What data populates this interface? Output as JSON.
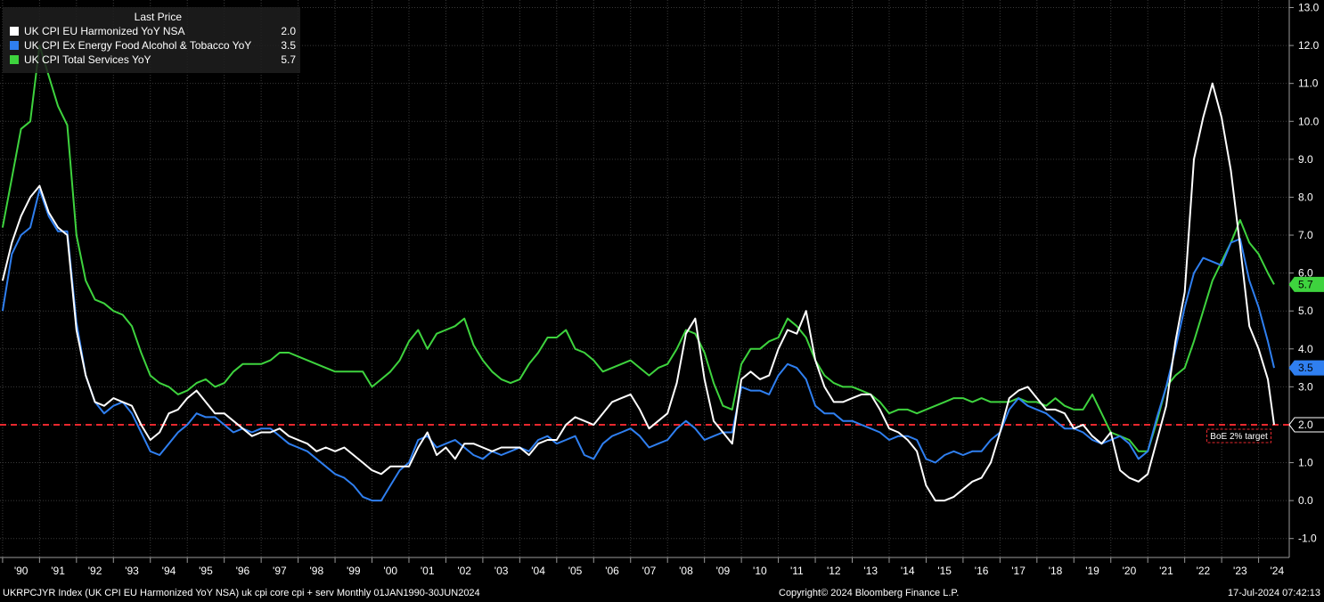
{
  "legend": {
    "header": "Last Price",
    "items": [
      {
        "label": "UK CPI EU Harmonized YoY NSA",
        "value": "2.0",
        "color": "#ffffff"
      },
      {
        "label": "UK CPI Ex Energy Food Alcohol & Tobacco YoY",
        "value": "3.5",
        "color": "#2f7ff0"
      },
      {
        "label": "UK CPI Total Services YoY",
        "value": "5.7",
        "color": "#3ed33e"
      }
    ]
  },
  "footer": {
    "left": "UKRPCJYR Index (UK CPI EU Harmonized YoY NSA) uk cpi core cpi + serv  Monthly 01JAN1990-30JUN2024",
    "center": "Copyright© 2024 Bloomberg Finance L.P.",
    "right": "17-Jul-2024 07:42:13"
  },
  "chart_data": {
    "type": "line",
    "x_range": [
      "1990-01",
      "2024-06"
    ],
    "x_ticks": [
      "'90",
      "'91",
      "'92",
      "'93",
      "'94",
      "'95",
      "'96",
      "'97",
      "'98",
      "'99",
      "'00",
      "'01",
      "'02",
      "'03",
      "'04",
      "'05",
      "'06",
      "'07",
      "'08",
      "'09",
      "'10",
      "'11",
      "'12",
      "'13",
      "'14",
      "'15",
      "'16",
      "'17",
      "'18",
      "'19",
      "'20",
      "'21",
      "'22",
      "'23",
      "'24"
    ],
    "y_ticks": [
      "-1.0",
      "0.0",
      "1.0",
      "2.0",
      "3.0",
      "4.0",
      "5.0",
      "6.0",
      "7.0",
      "8.0",
      "9.0",
      "10.0",
      "11.0",
      "12.0",
      "13.0"
    ],
    "ylim": [
      -1.5,
      13.2
    ],
    "axis_position": "right",
    "grid": true,
    "legend_position": "top-left",
    "reference_line": {
      "value": 2.0,
      "label": "BoE 2% target",
      "color": "#e8282e"
    },
    "last_values": [
      {
        "value": "5.7",
        "color": "#3ed33e"
      },
      {
        "value": "3.5",
        "color": "#2f7ff0"
      },
      {
        "value": "2.0",
        "color": "#ffffff"
      }
    ],
    "series": [
      {
        "name": "UK CPI EU Harmonized YoY NSA",
        "color": "#ffffff",
        "x": [
          1990.0,
          1990.25,
          1990.5,
          1990.75,
          1991.0,
          1991.25,
          1991.5,
          1991.75,
          1992.0,
          1992.25,
          1992.5,
          1992.75,
          1993.0,
          1993.25,
          1993.5,
          1993.75,
          1994.0,
          1994.25,
          1994.5,
          1994.75,
          1995.0,
          1995.25,
          1995.5,
          1995.75,
          1996.0,
          1996.25,
          1996.5,
          1996.75,
          1997.0,
          1997.25,
          1997.5,
          1997.75,
          1998.0,
          1998.25,
          1998.5,
          1998.75,
          1999.0,
          1999.25,
          1999.5,
          1999.75,
          2000.0,
          2000.25,
          2000.5,
          2000.75,
          2001.0,
          2001.25,
          2001.5,
          2001.75,
          2002.0,
          2002.25,
          2002.5,
          2002.75,
          2003.0,
          2003.25,
          2003.5,
          2003.75,
          2004.0,
          2004.25,
          2004.5,
          2004.75,
          2005.0,
          2005.25,
          2005.5,
          2005.75,
          2006.0,
          2006.25,
          2006.5,
          2006.75,
          2007.0,
          2007.25,
          2007.5,
          2007.75,
          2008.0,
          2008.25,
          2008.5,
          2008.75,
          2009.0,
          2009.25,
          2009.5,
          2009.75,
          2010.0,
          2010.25,
          2010.5,
          2010.75,
          2011.0,
          2011.25,
          2011.5,
          2011.75,
          2012.0,
          2012.25,
          2012.5,
          2012.75,
          2013.0,
          2013.25,
          2013.5,
          2013.75,
          2014.0,
          2014.25,
          2014.5,
          2014.75,
          2015.0,
          2015.25,
          2015.5,
          2015.75,
          2016.0,
          2016.25,
          2016.5,
          2016.75,
          2017.0,
          2017.25,
          2017.5,
          2017.75,
          2018.0,
          2018.25,
          2018.5,
          2018.75,
          2019.0,
          2019.25,
          2019.5,
          2019.75,
          2020.0,
          2020.25,
          2020.5,
          2020.75,
          2021.0,
          2021.25,
          2021.5,
          2021.75,
          2022.0,
          2022.25,
          2022.5,
          2022.75,
          2023.0,
          2023.25,
          2023.5,
          2023.75,
          2024.0,
          2024.25,
          2024.42
        ],
        "values": [
          5.8,
          6.8,
          7.5,
          8.0,
          8.3,
          7.6,
          7.2,
          7.0,
          4.5,
          3.3,
          2.6,
          2.5,
          2.7,
          2.6,
          2.5,
          2.0,
          1.6,
          1.8,
          2.3,
          2.4,
          2.7,
          2.9,
          2.6,
          2.3,
          2.3,
          2.1,
          1.9,
          1.7,
          1.8,
          1.8,
          1.9,
          1.7,
          1.6,
          1.5,
          1.3,
          1.4,
          1.3,
          1.4,
          1.2,
          1.0,
          0.8,
          0.7,
          0.9,
          0.9,
          0.9,
          1.4,
          1.8,
          1.2,
          1.4,
          1.1,
          1.5,
          1.5,
          1.4,
          1.3,
          1.4,
          1.4,
          1.4,
          1.2,
          1.5,
          1.6,
          1.6,
          2.0,
          2.2,
          2.1,
          2.0,
          2.3,
          2.6,
          2.7,
          2.8,
          2.4,
          1.9,
          2.1,
          2.3,
          3.1,
          4.4,
          4.8,
          3.2,
          2.1,
          1.8,
          1.5,
          3.2,
          3.4,
          3.2,
          3.3,
          4.0,
          4.5,
          4.4,
          5.0,
          3.7,
          3.0,
          2.6,
          2.6,
          2.7,
          2.8,
          2.8,
          2.4,
          1.9,
          1.8,
          1.6,
          1.3,
          0.4,
          0.0,
          0.0,
          0.1,
          0.3,
          0.5,
          0.6,
          1.0,
          1.8,
          2.7,
          2.9,
          3.0,
          2.7,
          2.4,
          2.4,
          2.3,
          1.9,
          2.0,
          1.7,
          1.5,
          1.8,
          0.8,
          0.6,
          0.5,
          0.7,
          1.6,
          2.5,
          4.2,
          5.5,
          9.0,
          10.1,
          11.0,
          10.1,
          8.7,
          6.7,
          4.6,
          4.0,
          3.2,
          2.0
        ]
      },
      {
        "name": "UK CPI Ex Energy Food Alcohol & Tobacco YoY",
        "color": "#2f7ff0",
        "x": [
          1990.0,
          1990.25,
          1990.5,
          1990.75,
          1991.0,
          1991.25,
          1991.5,
          1991.75,
          1992.0,
          1992.25,
          1992.5,
          1992.75,
          1993.0,
          1993.25,
          1993.5,
          1993.75,
          1994.0,
          1994.25,
          1994.5,
          1994.75,
          1995.0,
          1995.25,
          1995.5,
          1995.75,
          1996.0,
          1996.25,
          1996.5,
          1996.75,
          1997.0,
          1997.25,
          1997.5,
          1997.75,
          1998.0,
          1998.25,
          1998.5,
          1998.75,
          1999.0,
          1999.25,
          1999.5,
          1999.75,
          2000.0,
          2000.25,
          2000.5,
          2000.75,
          2001.0,
          2001.25,
          2001.5,
          2001.75,
          2002.0,
          2002.25,
          2002.5,
          2002.75,
          2003.0,
          2003.25,
          2003.5,
          2003.75,
          2004.0,
          2004.25,
          2004.5,
          2004.75,
          2005.0,
          2005.25,
          2005.5,
          2005.75,
          2006.0,
          2006.25,
          2006.5,
          2006.75,
          2007.0,
          2007.25,
          2007.5,
          2007.75,
          2008.0,
          2008.25,
          2008.5,
          2008.75,
          2009.0,
          2009.25,
          2009.5,
          2009.75,
          2010.0,
          2010.25,
          2010.5,
          2010.75,
          2011.0,
          2011.25,
          2011.5,
          2011.75,
          2012.0,
          2012.25,
          2012.5,
          2012.75,
          2013.0,
          2013.25,
          2013.5,
          2013.75,
          2014.0,
          2014.25,
          2014.5,
          2014.75,
          2015.0,
          2015.25,
          2015.5,
          2015.75,
          2016.0,
          2016.25,
          2016.5,
          2016.75,
          2017.0,
          2017.25,
          2017.5,
          2017.75,
          2018.0,
          2018.25,
          2018.5,
          2018.75,
          2019.0,
          2019.25,
          2019.5,
          2019.75,
          2020.0,
          2020.25,
          2020.5,
          2020.75,
          2021.0,
          2021.25,
          2021.5,
          2021.75,
          2022.0,
          2022.25,
          2022.5,
          2022.75,
          2023.0,
          2023.25,
          2023.5,
          2023.75,
          2024.0,
          2024.25,
          2024.42
        ],
        "values": [
          5.0,
          6.5,
          7.0,
          7.2,
          8.2,
          7.5,
          7.1,
          7.1,
          4.7,
          3.3,
          2.6,
          2.3,
          2.5,
          2.6,
          2.3,
          1.8,
          1.3,
          1.2,
          1.5,
          1.8,
          2.0,
          2.3,
          2.2,
          2.2,
          2.0,
          1.8,
          1.9,
          1.8,
          1.9,
          1.9,
          1.7,
          1.5,
          1.4,
          1.3,
          1.1,
          0.9,
          0.7,
          0.6,
          0.4,
          0.1,
          0.0,
          0.0,
          0.4,
          0.8,
          1.0,
          1.6,
          1.7,
          1.4,
          1.5,
          1.6,
          1.4,
          1.2,
          1.1,
          1.3,
          1.2,
          1.3,
          1.4,
          1.3,
          1.6,
          1.7,
          1.5,
          1.6,
          1.7,
          1.2,
          1.1,
          1.5,
          1.7,
          1.8,
          1.9,
          1.7,
          1.4,
          1.5,
          1.6,
          1.9,
          2.1,
          1.9,
          1.6,
          1.7,
          1.8,
          1.8,
          3.0,
          2.9,
          2.9,
          2.8,
          3.3,
          3.6,
          3.5,
          3.2,
          2.5,
          2.3,
          2.3,
          2.1,
          2.1,
          2.0,
          1.9,
          1.8,
          1.6,
          1.7,
          1.7,
          1.6,
          1.1,
          1.0,
          1.2,
          1.3,
          1.2,
          1.3,
          1.3,
          1.6,
          1.8,
          2.4,
          2.7,
          2.5,
          2.4,
          2.3,
          2.1,
          1.9,
          1.9,
          1.8,
          1.6,
          1.5,
          1.6,
          1.7,
          1.5,
          1.1,
          1.3,
          2.2,
          3.0,
          4.0,
          5.1,
          6.0,
          6.4,
          6.3,
          6.2,
          6.8,
          6.9,
          5.8,
          5.1,
          4.2,
          3.5
        ]
      },
      {
        "name": "UK CPI Total Services YoY",
        "color": "#3ed33e",
        "x": [
          1990.0,
          1990.25,
          1990.5,
          1990.75,
          1991.0,
          1991.25,
          1991.5,
          1991.75,
          1992.0,
          1992.25,
          1992.5,
          1992.75,
          1993.0,
          1993.25,
          1993.5,
          1993.75,
          1994.0,
          1994.25,
          1994.5,
          1994.75,
          1995.0,
          1995.25,
          1995.5,
          1995.75,
          1996.0,
          1996.25,
          1996.5,
          1996.75,
          1997.0,
          1997.25,
          1997.5,
          1997.75,
          1998.0,
          1998.25,
          1998.5,
          1998.75,
          1999.0,
          1999.25,
          1999.5,
          1999.75,
          2000.0,
          2000.25,
          2000.5,
          2000.75,
          2001.0,
          2001.25,
          2001.5,
          2001.75,
          2002.0,
          2002.25,
          2002.5,
          2002.75,
          2003.0,
          2003.25,
          2003.5,
          2003.75,
          2004.0,
          2004.25,
          2004.5,
          2004.75,
          2005.0,
          2005.25,
          2005.5,
          2005.75,
          2006.0,
          2006.25,
          2006.5,
          2006.75,
          2007.0,
          2007.25,
          2007.5,
          2007.75,
          2008.0,
          2008.25,
          2008.5,
          2008.75,
          2009.0,
          2009.25,
          2009.5,
          2009.75,
          2010.0,
          2010.25,
          2010.5,
          2010.75,
          2011.0,
          2011.25,
          2011.5,
          2011.75,
          2012.0,
          2012.25,
          2012.5,
          2012.75,
          2013.0,
          2013.25,
          2013.5,
          2013.75,
          2014.0,
          2014.25,
          2014.5,
          2014.75,
          2015.0,
          2015.25,
          2015.5,
          2015.75,
          2016.0,
          2016.25,
          2016.5,
          2016.75,
          2017.0,
          2017.25,
          2017.5,
          2017.75,
          2018.0,
          2018.25,
          2018.5,
          2018.75,
          2019.0,
          2019.25,
          2019.5,
          2019.75,
          2020.0,
          2020.25,
          2020.5,
          2020.75,
          2021.0,
          2021.25,
          2021.5,
          2021.75,
          2022.0,
          2022.25,
          2022.5,
          2022.75,
          2023.0,
          2023.25,
          2023.5,
          2023.75,
          2024.0,
          2024.25,
          2024.42
        ],
        "values": [
          7.2,
          8.5,
          9.8,
          10.0,
          12.0,
          11.2,
          10.4,
          9.9,
          7.0,
          5.8,
          5.3,
          5.2,
          5.0,
          4.9,
          4.6,
          3.9,
          3.3,
          3.1,
          3.0,
          2.8,
          2.9,
          3.1,
          3.2,
          3.0,
          3.1,
          3.4,
          3.6,
          3.6,
          3.6,
          3.7,
          3.9,
          3.9,
          3.8,
          3.7,
          3.6,
          3.5,
          3.4,
          3.4,
          3.4,
          3.4,
          3.0,
          3.2,
          3.4,
          3.7,
          4.2,
          4.5,
          4.0,
          4.4,
          4.5,
          4.6,
          4.8,
          4.1,
          3.7,
          3.4,
          3.2,
          3.1,
          3.2,
          3.6,
          3.9,
          4.3,
          4.3,
          4.5,
          4.0,
          3.9,
          3.7,
          3.4,
          3.5,
          3.6,
          3.7,
          3.5,
          3.3,
          3.5,
          3.6,
          4.0,
          4.5,
          4.4,
          3.9,
          3.1,
          2.5,
          2.4,
          3.6,
          4.0,
          4.0,
          4.2,
          4.3,
          4.8,
          4.6,
          4.3,
          3.7,
          3.3,
          3.1,
          3.0,
          3.0,
          2.9,
          2.8,
          2.6,
          2.3,
          2.4,
          2.4,
          2.3,
          2.4,
          2.5,
          2.6,
          2.7,
          2.7,
          2.6,
          2.7,
          2.6,
          2.6,
          2.6,
          2.7,
          2.6,
          2.6,
          2.5,
          2.7,
          2.5,
          2.4,
          2.4,
          2.8,
          2.3,
          1.8,
          1.7,
          1.6,
          1.3,
          1.3,
          2.1,
          3.0,
          3.3,
          3.5,
          4.2,
          5.0,
          5.8,
          6.3,
          6.8,
          7.4,
          6.8,
          6.5,
          6.0,
          5.7
        ]
      }
    ]
  }
}
